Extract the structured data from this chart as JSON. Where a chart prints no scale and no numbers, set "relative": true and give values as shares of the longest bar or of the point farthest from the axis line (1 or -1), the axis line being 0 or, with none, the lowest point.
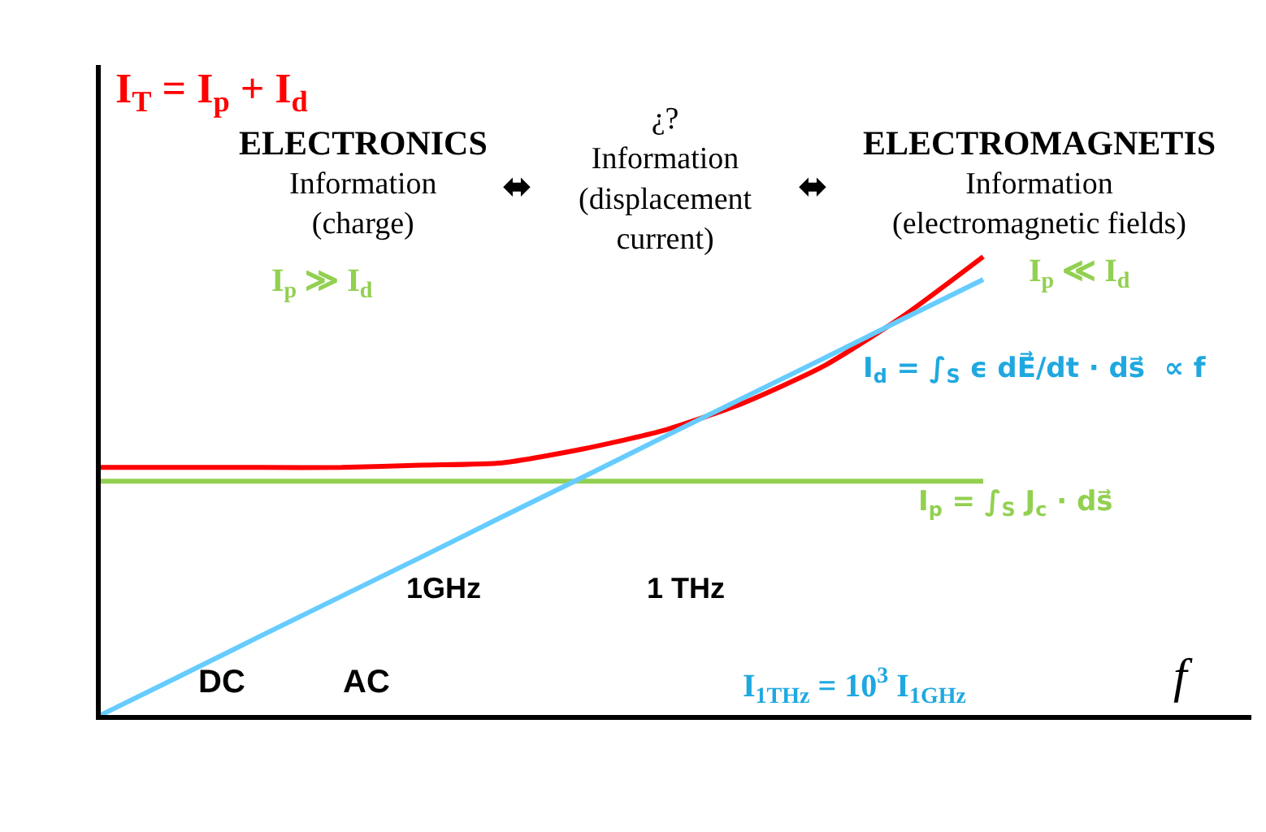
{
  "chart_data": {
    "type": "line",
    "relative": true,
    "title": "I$_{T}$ = I$_{p}$ + I$_{d}$",
    "xlabel": "f",
    "categories": [
      null,
      null,
      null,
      null,
      null,
      null,
      null,
      null,
      null,
      null,
      null,
      null
    ],
    "series": [
      {
        "color": "#ff0000",
        "values": [
          0.54,
          0.54,
          0.54,
          0.54,
          0.545,
          0.55,
          0.58,
          0.62,
          0.68,
          0.76,
          0.87,
          1.0
        ]
      },
      {
        "color": "#92d050",
        "values": [
          0.51,
          0.51,
          0.51,
          0.51,
          0.51,
          0.51,
          0.51,
          0.51,
          0.51,
          0.51,
          0.51,
          0.51
        ]
      },
      {
        "color": "#66ccff",
        "values": [
          0.0,
          0.086,
          0.173,
          0.259,
          0.345,
          0.432,
          0.518,
          0.605,
          0.691,
          0.777,
          0.864,
          0.95
        ]
      }
    ],
    "annotations": [
      "ELECTRONICS",
      "Information\n(charge)",
      "¿?\nInformation\n(displacement\ncurrent)",
      "ELECTROMAGNETIS",
      "Information\n(electromagnetic fields)",
      "⬌",
      "⬌",
      "I$_{p}$ ≫ I$_{d}$",
      "I$_{p}$ ≪ I$_{d}$",
      "I$_{d}$ = ∫$_{S}$ ϵ dE⃗/dt · ds⃗  ∝ f",
      "I$_{p}$ = ∫$_{S}$ J$_{c}$ · ds⃗",
      "1GHz",
      "1 THz",
      "DC",
      "AC",
      "I$_{1THz}$ = 10$^{3}$ I$_{1GHz}$"
    ],
    "line_style": "solid",
    "marker": "none"
  }
}
